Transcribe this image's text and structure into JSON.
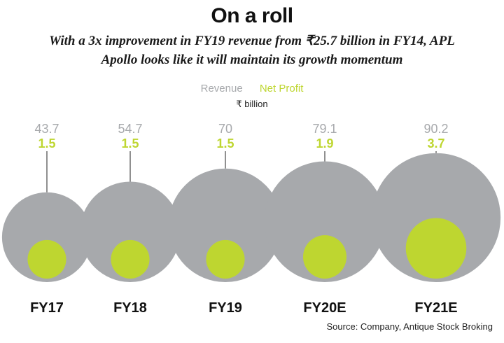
{
  "title": "On a roll",
  "subtitle_line1": "With a 3x improvement in FY19 revenue from ₹25.7 billion in FY14, APL",
  "subtitle_line2": "Apollo looks like it will maintain its growth momentum",
  "unit": "₹ billion",
  "source": "Source: Company, Antique Stock Broking",
  "colors": {
    "revenue": "#a7a9ac",
    "net_profit": "#bed630",
    "label_text": "#111111",
    "leader": "#222222"
  },
  "chart_data": {
    "type": "bubble",
    "categories": [
      "FY17",
      "FY18",
      "FY19",
      "FY20E",
      "FY21E"
    ],
    "series": [
      {
        "name": "Revenue",
        "values": [
          43.7,
          54.7,
          70,
          79.1,
          90.2
        ],
        "value_labels": [
          "43.7",
          "54.7",
          "70",
          "79.1",
          "90.2"
        ]
      },
      {
        "name": "Net Profit",
        "values": [
          1.5,
          1.5,
          1.5,
          1.9,
          3.7
        ],
        "value_labels": [
          "1.5",
          "1.5",
          "1.5",
          "1.9",
          "3.7"
        ]
      }
    ]
  }
}
